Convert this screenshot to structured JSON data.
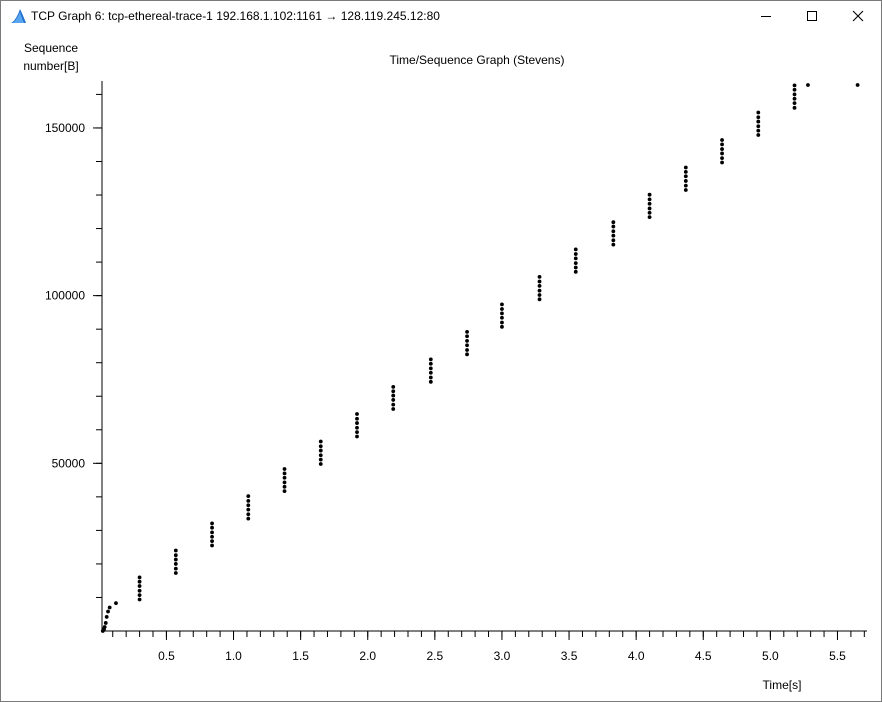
{
  "window": {
    "title": "TCP Graph 6: tcp-ethereal-trace-1 192.168.1.102:1161 → 128.119.245.12:80",
    "app_icon": "wireshark-fin-icon",
    "minimize_icon": "minimize-icon",
    "maximize_icon": "maximize-icon",
    "close_icon": "close-icon"
  },
  "chart_data": {
    "type": "scatter",
    "title": "Time/Sequence Graph (Stevens)",
    "ylabel_lines": [
      "Sequence",
      "number[B]"
    ],
    "xlabel": "Time[s]",
    "xlim": [
      0.02,
      5.72
    ],
    "ylim": [
      0,
      164000
    ],
    "x_ticks": [
      {
        "value": 0.5,
        "label": "0.5"
      },
      {
        "value": 1.0,
        "label": "1.0"
      },
      {
        "value": 1.5,
        "label": "1.5"
      },
      {
        "value": 2.0,
        "label": "2.0"
      },
      {
        "value": 2.5,
        "label": "2.5"
      },
      {
        "value": 3.0,
        "label": "3.0"
      },
      {
        "value": 3.5,
        "label": "3.5"
      },
      {
        "value": 4.0,
        "label": "4.0"
      },
      {
        "value": 4.5,
        "label": "4.5"
      },
      {
        "value": 5.0,
        "label": "5.0"
      },
      {
        "value": 5.5,
        "label": "5.5"
      }
    ],
    "y_ticks": [
      {
        "value": 50000,
        "label": "50000"
      },
      {
        "value": 100000,
        "label": "100000"
      },
      {
        "value": 150000,
        "label": "150000"
      }
    ],
    "x_minor_step": 0.1,
    "y_minor_step": 10000,
    "marker_color": "#000000",
    "series": [
      {
        "points": [
          [
            0.026,
            0
          ],
          [
            0.035,
            566
          ],
          [
            0.04,
            1200
          ],
          [
            0.048,
            2400
          ],
          [
            0.055,
            4200
          ],
          [
            0.065,
            5800
          ],
          [
            0.077,
            7000
          ],
          [
            0.124,
            8300
          ],
          [
            0.3,
            9400
          ],
          [
            0.3,
            10700
          ],
          [
            0.3,
            12000
          ],
          [
            0.3,
            13400
          ],
          [
            0.3,
            14700
          ],
          [
            0.3,
            16000
          ],
          [
            0.57,
            17300
          ],
          [
            0.57,
            18600
          ],
          [
            0.57,
            20000
          ],
          [
            0.57,
            21300
          ],
          [
            0.57,
            22600
          ],
          [
            0.57,
            24000
          ],
          [
            0.84,
            25500
          ],
          [
            0.84,
            26800
          ],
          [
            0.84,
            28100
          ],
          [
            0.84,
            29400
          ],
          [
            0.84,
            30800
          ],
          [
            0.84,
            32100
          ],
          [
            1.11,
            33500
          ],
          [
            1.11,
            34800
          ],
          [
            1.11,
            36200
          ],
          [
            1.11,
            37500
          ],
          [
            1.11,
            38800
          ],
          [
            1.11,
            40200
          ],
          [
            1.38,
            41700
          ],
          [
            1.38,
            43000
          ],
          [
            1.38,
            44300
          ],
          [
            1.38,
            45700
          ],
          [
            1.38,
            47000
          ],
          [
            1.38,
            48300
          ],
          [
            1.65,
            49800
          ],
          [
            1.65,
            51100
          ],
          [
            1.65,
            52400
          ],
          [
            1.65,
            53800
          ],
          [
            1.65,
            55100
          ],
          [
            1.65,
            56500
          ],
          [
            1.92,
            58000
          ],
          [
            1.92,
            59300
          ],
          [
            1.92,
            60600
          ],
          [
            1.92,
            62000
          ],
          [
            1.92,
            63300
          ],
          [
            1.92,
            64700
          ],
          [
            2.19,
            66200
          ],
          [
            2.19,
            67500
          ],
          [
            2.19,
            68900
          ],
          [
            2.19,
            70200
          ],
          [
            2.19,
            71500
          ],
          [
            2.19,
            72800
          ],
          [
            2.47,
            74300
          ],
          [
            2.47,
            75600
          ],
          [
            2.47,
            77000
          ],
          [
            2.47,
            78300
          ],
          [
            2.47,
            79700
          ],
          [
            2.47,
            81000
          ],
          [
            2.74,
            82500
          ],
          [
            2.74,
            83800
          ],
          [
            2.74,
            85200
          ],
          [
            2.74,
            86500
          ],
          [
            2.74,
            87900
          ],
          [
            2.74,
            89200
          ],
          [
            3.0,
            90700
          ],
          [
            3.0,
            92000
          ],
          [
            3.0,
            93400
          ],
          [
            3.0,
            94700
          ],
          [
            3.0,
            96000
          ],
          [
            3.0,
            97400
          ],
          [
            3.28,
            98900
          ],
          [
            3.28,
            100200
          ],
          [
            3.28,
            101500
          ],
          [
            3.28,
            102900
          ],
          [
            3.28,
            104200
          ],
          [
            3.28,
            105600
          ],
          [
            3.55,
            107100
          ],
          [
            3.55,
            108400
          ],
          [
            3.55,
            109700
          ],
          [
            3.55,
            111100
          ],
          [
            3.55,
            112400
          ],
          [
            3.55,
            113800
          ],
          [
            3.83,
            115200
          ],
          [
            3.83,
            116500
          ],
          [
            3.83,
            117900
          ],
          [
            3.83,
            119200
          ],
          [
            3.83,
            120600
          ],
          [
            3.83,
            121900
          ],
          [
            4.1,
            123400
          ],
          [
            4.1,
            124700
          ],
          [
            4.1,
            126000
          ],
          [
            4.1,
            127400
          ],
          [
            4.1,
            128700
          ],
          [
            4.1,
            130100
          ],
          [
            4.37,
            131500
          ],
          [
            4.37,
            132800
          ],
          [
            4.37,
            134200
          ],
          [
            4.37,
            135600
          ],
          [
            4.37,
            136900
          ],
          [
            4.37,
            138200
          ],
          [
            4.64,
            139700
          ],
          [
            4.64,
            141000
          ],
          [
            4.64,
            142400
          ],
          [
            4.64,
            143700
          ],
          [
            4.64,
            145100
          ],
          [
            4.64,
            146400
          ],
          [
            4.91,
            147900
          ],
          [
            4.91,
            149200
          ],
          [
            4.91,
            150500
          ],
          [
            4.91,
            151900
          ],
          [
            4.91,
            153200
          ],
          [
            4.91,
            154600
          ],
          [
            5.18,
            156000
          ],
          [
            5.18,
            157400
          ],
          [
            5.18,
            158700
          ],
          [
            5.18,
            160000
          ],
          [
            5.18,
            161400
          ],
          [
            5.18,
            162700
          ],
          [
            5.28,
            162800
          ],
          [
            5.65,
            162800
          ]
        ]
      }
    ]
  }
}
